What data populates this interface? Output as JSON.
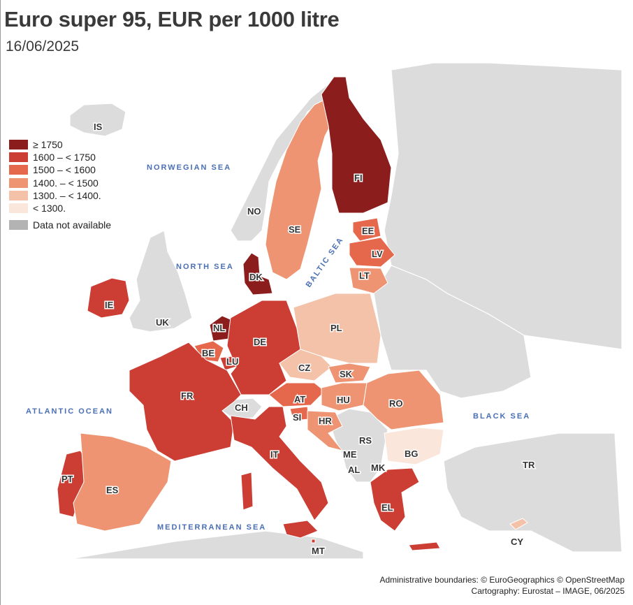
{
  "header": {
    "title": "Euro super 95, EUR per 1000 litre",
    "subtitle": "16/06/2025"
  },
  "legend": {
    "items": [
      {
        "label": "≥ 1750",
        "color": "#8c1d1d"
      },
      {
        "label": "1600 – < 1750",
        "color": "#cc3d33"
      },
      {
        "label": "1500 – < 1600",
        "color": "#e5674c"
      },
      {
        "label": "1400. – < 1500",
        "color": "#ee9472"
      },
      {
        "label": "1300. – < 1400.",
        "color": "#f4c2a8"
      },
      {
        "label": "< 1300.",
        "color": "#fbe6dc"
      }
    ],
    "na": {
      "label": "Data not available",
      "color": "#b3b3b3"
    }
  },
  "seas": {
    "norwegian": "NORWEGIAN SEA",
    "north": "NORTH SEA",
    "baltic": "BALTIC SEA",
    "atlantic": "ATLANTIC OCEAN",
    "black": "BLACK SEA",
    "mediterranean": "MEDITERRANEAN SEA"
  },
  "countries": {
    "IS": "IS",
    "NO": "NO",
    "SE": "SE",
    "FI": "FI",
    "EE": "EE",
    "LV": "LV",
    "LT": "LT",
    "DK": "DK",
    "IE": "IE",
    "UK": "UK",
    "NL": "NL",
    "BE": "BE",
    "LU": "LU",
    "DE": "DE",
    "PL": "PL",
    "CZ": "CZ",
    "SK": "SK",
    "FR": "FR",
    "CH": "CH",
    "AT": "AT",
    "HU": "HU",
    "RO": "RO",
    "SI": "SI",
    "HR": "HR",
    "RS": "RS",
    "BG": "BG",
    "ME": "ME",
    "MK": "MK",
    "AL": "AL",
    "IT": "IT",
    "PT": "PT",
    "ES": "ES",
    "EL": "EL",
    "TR": "TR",
    "CY": "CY",
    "MT": "MT"
  },
  "credits": {
    "line1": "Administrative boundaries: © EuroGeographics © OpenStreetMap",
    "line2": "Cartography: Eurostat – IMAGE, 06/2025"
  }
}
